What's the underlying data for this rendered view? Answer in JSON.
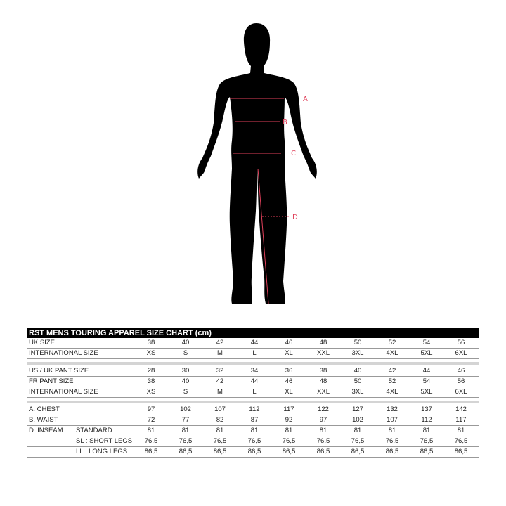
{
  "figure": {
    "labels": {
      "a": "A",
      "b": "B",
      "c": "C",
      "d": "D"
    },
    "colors": {
      "silhouette": "#000000",
      "measure": "#e0405a"
    }
  },
  "table": {
    "title": "RST MENS TOURING APPAREL SIZE CHART (cm)",
    "groups": [
      [
        {
          "label": "UK SIZE",
          "sub": "",
          "values": [
            "38",
            "40",
            "42",
            "44",
            "46",
            "48",
            "50",
            "52",
            "54",
            "56"
          ]
        },
        {
          "label": "INTERNATIONAL SIZE",
          "sub": "",
          "values": [
            "XS",
            "S",
            "M",
            "L",
            "XL",
            "XXL",
            "3XL",
            "4XL",
            "5XL",
            "6XL"
          ]
        }
      ],
      [
        {
          "label": "US / UK  PANT SIZE",
          "sub": "",
          "values": [
            "28",
            "30",
            "32",
            "34",
            "36",
            "38",
            "40",
            "42",
            "44",
            "46"
          ]
        },
        {
          "label": "FR PANT SIZE",
          "sub": "",
          "values": [
            "38",
            "40",
            "42",
            "44",
            "46",
            "48",
            "50",
            "52",
            "54",
            "56"
          ]
        },
        {
          "label": "INTERNATIONAL SIZE",
          "sub": "",
          "values": [
            "XS",
            "S",
            "M",
            "L",
            "XL",
            "XXL",
            "3XL",
            "4XL",
            "5XL",
            "6XL"
          ]
        }
      ],
      [
        {
          "label": "A. CHEST",
          "sub": "",
          "values": [
            "97",
            "102",
            "107",
            "112",
            "117",
            "122",
            "127",
            "132",
            "137",
            "142"
          ]
        },
        {
          "label": "B. WAIST",
          "sub": "",
          "values": [
            "72",
            "77",
            "82",
            "87",
            "92",
            "97",
            "102",
            "107",
            "112",
            "117"
          ]
        },
        {
          "label": "D. INSEAM",
          "sub": "STANDARD",
          "values": [
            "81",
            "81",
            "81",
            "81",
            "81",
            "81",
            "81",
            "81",
            "81",
            "81"
          ]
        },
        {
          "label": "",
          "sub": "SL : SHORT LEGS",
          "values": [
            "76,5",
            "76,5",
            "76,5",
            "76,5",
            "76,5",
            "76,5",
            "76,5",
            "76,5",
            "76,5",
            "76,5"
          ]
        },
        {
          "label": "",
          "sub": "LL : LONG LEGS",
          "values": [
            "86,5",
            "86,5",
            "86,5",
            "86,5",
            "86,5",
            "86,5",
            "86,5",
            "86,5",
            "86,5",
            "86,5"
          ]
        }
      ]
    ]
  }
}
